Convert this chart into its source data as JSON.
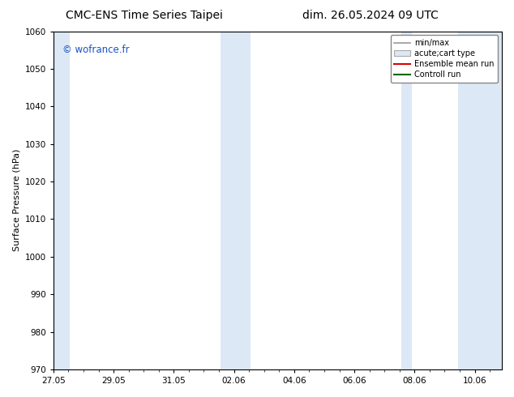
{
  "title_left": "CMC-ENS Time Series Taipei",
  "title_right": "dim. 26.05.2024 09 UTC",
  "ylabel": "Surface Pressure (hPa)",
  "ylim": [
    970,
    1060
  ],
  "yticks": [
    970,
    980,
    990,
    1000,
    1010,
    1020,
    1030,
    1040,
    1050,
    1060
  ],
  "xtick_labels": [
    "27.05",
    "29.05",
    "31.05",
    "02.06",
    "04.06",
    "06.06",
    "08.06",
    "10.06"
  ],
  "xtick_positions": [
    0,
    2,
    4,
    6,
    8,
    10,
    12,
    14
  ],
  "x_min": 0,
  "x_max": 14.9,
  "background_color": "#ffffff",
  "plot_bg_color": "#ffffff",
  "shaded_bands": [
    {
      "x_start": 0.0,
      "x_end": 0.55,
      "color": "#dce8f5"
    },
    {
      "x_start": 5.55,
      "x_end": 6.55,
      "color": "#dce8f5"
    },
    {
      "x_start": 11.55,
      "x_end": 11.9,
      "color": "#dce8f5"
    },
    {
      "x_start": 13.45,
      "x_end": 14.9,
      "color": "#dce8f5"
    }
  ],
  "watermark_text": "© wofrance.fr",
  "watermark_color": "#1a52c4",
  "watermark_fontsize": 8.5,
  "legend_entries": [
    {
      "label": "min/max",
      "color": "#999999",
      "linestyle": "-",
      "linewidth": 1.2,
      "type": "line"
    },
    {
      "label": "acute;cart type",
      "facecolor": "#dce8f5",
      "edgecolor": "#aaaaaa",
      "type": "patch"
    },
    {
      "label": "Ensemble mean run",
      "color": "#dd0000",
      "linestyle": "-",
      "linewidth": 1.5,
      "type": "line"
    },
    {
      "label": "Controll run",
      "color": "#006600",
      "linestyle": "-",
      "linewidth": 1.5,
      "type": "line"
    }
  ],
  "title_fontsize": 10,
  "ylabel_fontsize": 8,
  "tick_fontsize": 7.5,
  "legend_fontsize": 7
}
